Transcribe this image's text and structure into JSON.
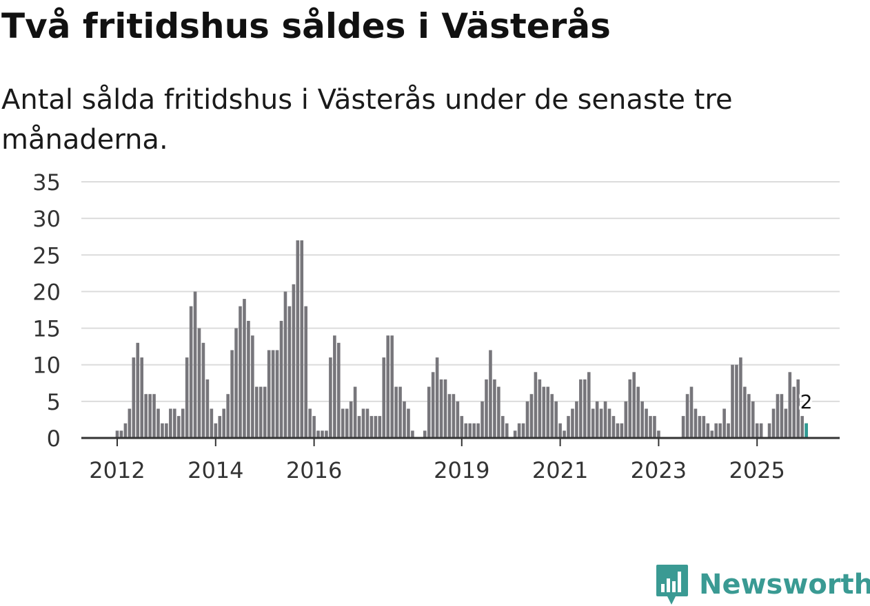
{
  "title": "Två fritidshus såldes i Västerås",
  "subtitle": "Antal sålda fritidshus i Västerås under de senaste tre månaderna.",
  "brand": {
    "name": "Newsworthy",
    "icon": "newsworthy-logo-icon",
    "color": "#3a9a93"
  },
  "colors": {
    "bar": "#77767b",
    "highlight": "#2f9b94",
    "grid": "#dcdcdc",
    "axis": "#333333"
  },
  "chart_data": {
    "type": "bar",
    "title": "Antal sålda fritidshus i Västerås",
    "xlabel": "",
    "ylabel": "",
    "ylim": [
      0,
      35
    ],
    "yticks": [
      0,
      5,
      10,
      15,
      20,
      25,
      30,
      35
    ],
    "xticks": [
      {
        "label": "2012",
        "index": 0
      },
      {
        "label": "2014",
        "index": 24
      },
      {
        "label": "2016",
        "index": 48
      },
      {
        "label": "2019",
        "index": 84
      },
      {
        "label": "2021",
        "index": 108
      },
      {
        "label": "2023",
        "index": 132
      },
      {
        "label": "2025",
        "index": 156
      }
    ],
    "start": "2012-01",
    "frequency": "monthly",
    "values": [
      1,
      1,
      2,
      4,
      11,
      13,
      11,
      6,
      6,
      6,
      4,
      2,
      2,
      4,
      4,
      3,
      4,
      11,
      18,
      20,
      15,
      13,
      8,
      4,
      2,
      3,
      4,
      6,
      12,
      15,
      18,
      19,
      16,
      14,
      7,
      7,
      7,
      12,
      12,
      12,
      16,
      20,
      18,
      21,
      27,
      27,
      18,
      4,
      3,
      1,
      1,
      1,
      11,
      14,
      13,
      4,
      4,
      5,
      7,
      3,
      4,
      4,
      3,
      3,
      3,
      11,
      14,
      14,
      7,
      7,
      5,
      4,
      1,
      0,
      0,
      1,
      7,
      9,
      11,
      8,
      8,
      6,
      6,
      5,
      3,
      2,
      2,
      2,
      2,
      5,
      8,
      12,
      8,
      7,
      3,
      2,
      0,
      1,
      2,
      2,
      5,
      6,
      9,
      8,
      7,
      7,
      6,
      5,
      2,
      1,
      3,
      4,
      5,
      8,
      8,
      9,
      4,
      5,
      4,
      5,
      4,
      3,
      2,
      2,
      5,
      8,
      9,
      7,
      5,
      4,
      3,
      3,
      1,
      0,
      0,
      0,
      0,
      0,
      3,
      6,
      7,
      4,
      3,
      3,
      2,
      1,
      2,
      2,
      4,
      2,
      10,
      10,
      11,
      7,
      6,
      5,
      2,
      2,
      0,
      2,
      4,
      6,
      6,
      4,
      9,
      7,
      8,
      3,
      2
    ],
    "highlight": {
      "index": 168,
      "value": 2,
      "label": "2"
    }
  }
}
